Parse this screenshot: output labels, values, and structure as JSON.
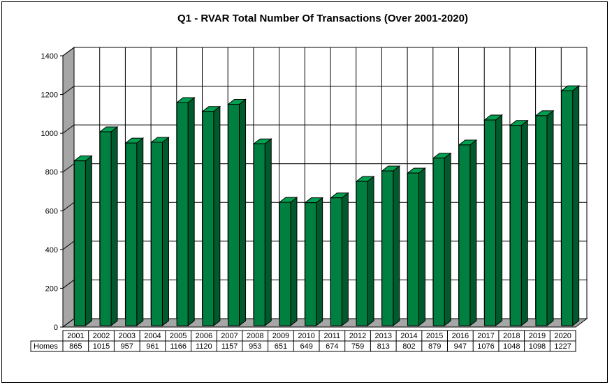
{
  "chart_data": {
    "type": "bar",
    "title": "Q1 - RVAR Total Number Of Transactions (Over 2001-2020)",
    "categories": [
      "2001",
      "2002",
      "2003",
      "2004",
      "2005",
      "2006",
      "2007",
      "2008",
      "2009",
      "2010",
      "2011",
      "2012",
      "2013",
      "2014",
      "2015",
      "2016",
      "2017",
      "2018",
      "2019",
      "2020"
    ],
    "series": [
      {
        "name": "Homes",
        "values": [
          865,
          1015,
          957,
          961,
          1166,
          1120,
          1157,
          953,
          651,
          649,
          674,
          759,
          813,
          802,
          879,
          947,
          1076,
          1048,
          1098,
          1227
        ]
      }
    ],
    "ylim": [
      0,
      1400
    ],
    "yticks": [
      0,
      200,
      400,
      600,
      800,
      1000,
      1200,
      1400
    ],
    "grid": true,
    "legend": "none",
    "data_table": true,
    "three_d": true
  },
  "colors": {
    "bar_front": "#008040",
    "bar_side": "#005a2c",
    "bar_top": "#00a050",
    "left_wall": "#a6a6a6",
    "floor": "#a6a6a6"
  }
}
